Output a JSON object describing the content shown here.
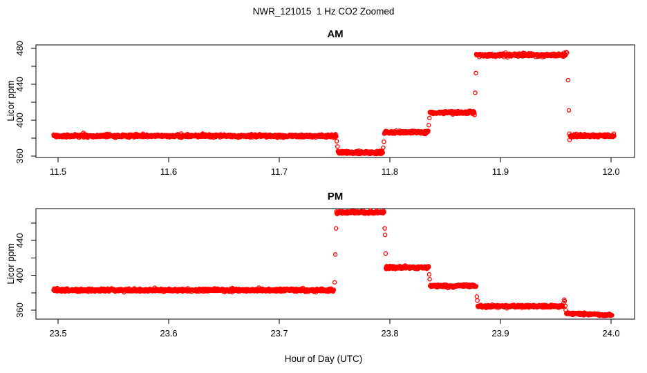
{
  "header": {
    "title": "NWR_121015  1 Hz CO2 Zoomed",
    "xlabel": "Hour of Day (UTC)"
  },
  "style": {
    "point_color": "#ff0000",
    "axis_color": "#000000",
    "background": "#ffffff"
  },
  "chart_data": [
    {
      "type": "scatter",
      "title": "AM",
      "ylabel": "Licor ppm",
      "marker": "open-circle",
      "sample_rate_hz": 1,
      "xlim": [
        11.48,
        12.021
      ],
      "ylim": [
        358.5,
        483.8
      ],
      "x_ticks": [
        11.5,
        11.6,
        11.7,
        11.8,
        11.9,
        12.0
      ],
      "x_tick_labels": [
        "11.5",
        "11.6",
        "11.7",
        "11.8",
        "11.9",
        "12.0"
      ],
      "y_major_ticks": [
        360,
        400,
        440,
        480
      ],
      "y_minor_ticks": [
        380,
        420,
        460
      ],
      "segments": [
        {
          "x_start": 11.496,
          "x_end": 11.7516,
          "level": 382.5,
          "noise": 0.8
        },
        {
          "x_start": 11.753,
          "x_end": 11.7937,
          "level": 364.0,
          "noise": 0.8
        },
        {
          "x_start": 11.795,
          "x_end": 11.8349,
          "level": 386.5,
          "noise": 0.8
        },
        {
          "x_start": 11.8361,
          "x_end": 11.8769,
          "level": 408.5,
          "noise": 0.8
        },
        {
          "x_start": 11.8781,
          "x_end": 11.9592,
          "level": 472.5,
          "noise": 0.8
        },
        {
          "x_start": 11.9628,
          "x_end": 12.003,
          "level": 382.5,
          "noise": 0.8
        }
      ],
      "transition_points": [
        {
          "x": 11.752,
          "y": 376.5
        },
        {
          "x": 11.7526,
          "y": 370.5
        },
        {
          "x": 11.794,
          "y": 369.5
        },
        {
          "x": 11.7946,
          "y": 376.0
        },
        {
          "x": 11.8352,
          "y": 394.5
        },
        {
          "x": 11.8358,
          "y": 402.5
        },
        {
          "x": 11.8772,
          "y": 430.5
        },
        {
          "x": 11.8778,
          "y": 452.5
        },
        {
          "x": 11.9595,
          "y": 476.0
        },
        {
          "x": 11.9602,
          "y": 475.0
        },
        {
          "x": 11.9612,
          "y": 444.5
        },
        {
          "x": 11.9618,
          "y": 411.0
        },
        {
          "x": 11.9624,
          "y": 385.0
        },
        {
          "x": 11.9625,
          "y": 378.0
        }
      ]
    },
    {
      "type": "scatter",
      "title": "PM",
      "ylabel": "Licor ppm",
      "marker": "open-circle",
      "sample_rate_hz": 1,
      "xlim": [
        23.48,
        24.021
      ],
      "ylim": [
        349.7,
        476.7
      ],
      "x_ticks": [
        23.5,
        23.6,
        23.7,
        23.8,
        23.9,
        24.0
      ],
      "x_tick_labels": [
        "23.5",
        "23.6",
        "23.7",
        "23.8",
        "23.9",
        "24.0"
      ],
      "y_major_ticks": [
        360,
        400,
        440
      ],
      "y_minor_ticks": [
        380,
        420,
        460
      ],
      "segments": [
        {
          "x_start": 23.496,
          "x_end": 23.7495,
          "level": 383.0,
          "noise": 0.8
        },
        {
          "x_start": 23.7517,
          "x_end": 23.7948,
          "level": 472.5,
          "noise": 0.8
        },
        {
          "x_start": 23.7963,
          "x_end": 23.8352,
          "level": 409.0,
          "noise": 0.8
        },
        {
          "x_start": 23.8364,
          "x_end": 23.8783,
          "level": 388.0,
          "noise": 0.8
        },
        {
          "x_start": 23.8795,
          "x_end": 23.9565,
          "level": 364.5,
          "noise": 0.8
        },
        {
          "x_start": 23.9595,
          "x_end": 24.001,
          "level": 356.5,
          "level_end": 354.0,
          "noise": 0.7
        }
      ],
      "transition_points": [
        {
          "x": 23.7501,
          "y": 392.0
        },
        {
          "x": 23.7507,
          "y": 424.0
        },
        {
          "x": 23.7513,
          "y": 454.0
        },
        {
          "x": 23.7953,
          "y": 454.0
        },
        {
          "x": 23.7957,
          "y": 446.5
        },
        {
          "x": 23.7962,
          "y": 425.0
        },
        {
          "x": 23.8356,
          "y": 401.0
        },
        {
          "x": 23.836,
          "y": 395.5
        },
        {
          "x": 23.8787,
          "y": 375.5
        },
        {
          "x": 23.8791,
          "y": 371.0
        },
        {
          "x": 23.957,
          "y": 368.0
        },
        {
          "x": 23.9576,
          "y": 372.0
        },
        {
          "x": 23.9581,
          "y": 370.5
        },
        {
          "x": 23.9586,
          "y": 365.0
        },
        {
          "x": 23.959,
          "y": 360.0
        }
      ]
    }
  ]
}
